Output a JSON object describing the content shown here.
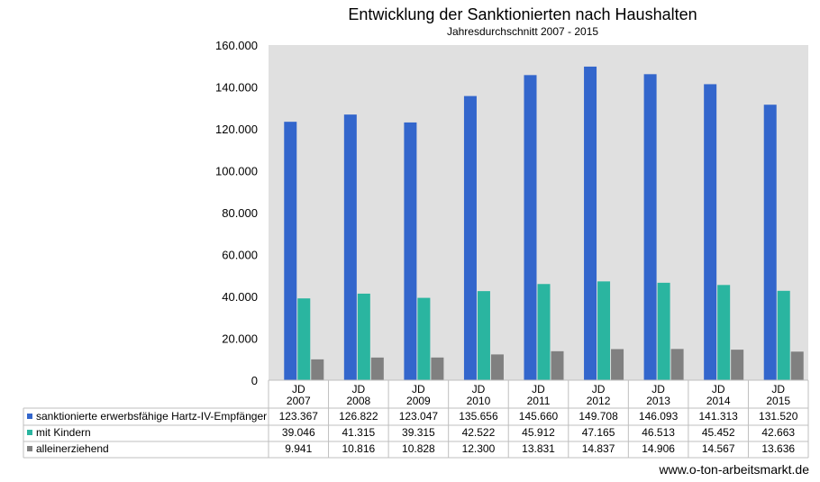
{
  "chart_data": {
    "type": "bar",
    "title": "Entwicklung der Sanktionierten nach Haushalten",
    "subtitle": "Jahresdurchschnitt  2007 - 2015",
    "categories": [
      [
        "JD",
        "2007"
      ],
      [
        "JD",
        "2008"
      ],
      [
        "JD",
        "2009"
      ],
      [
        "JD",
        "2010"
      ],
      [
        "JD",
        "2011"
      ],
      [
        "JD",
        "2012"
      ],
      [
        "JD",
        "2013"
      ],
      [
        "JD",
        "2014"
      ],
      [
        "JD",
        "2015"
      ]
    ],
    "series": [
      {
        "name": "sanktionierte erwerbsfähige Hartz-IV-Empfänger",
        "color": "#3366cc",
        "values": [
          123367,
          126822,
          123047,
          135656,
          145660,
          149708,
          146093,
          141313,
          131520
        ],
        "labels": [
          "123.367",
          "126.822",
          "123.047",
          "135.656",
          "145.660",
          "149.708",
          "146.093",
          "141.313",
          "131.520"
        ]
      },
      {
        "name": "mit Kindern",
        "color": "#2ab5a0",
        "values": [
          39046,
          41315,
          39315,
          42522,
          45912,
          47165,
          46513,
          45452,
          42663
        ],
        "labels": [
          "39.046",
          "41.315",
          "39.315",
          "42.522",
          "45.912",
          "47.165",
          "46.513",
          "45.452",
          "42.663"
        ]
      },
      {
        "name": "alleinerziehend",
        "color": "#808080",
        "values": [
          9941,
          10816,
          10828,
          12300,
          13831,
          14837,
          14906,
          14567,
          13636
        ],
        "labels": [
          "9.941",
          "10.816",
          "10.828",
          "12.300",
          "13.831",
          "14.837",
          "14.906",
          "14.567",
          "13.636"
        ]
      }
    ],
    "yticks": [
      0,
      20000,
      40000,
      60000,
      80000,
      100000,
      120000,
      140000,
      160000
    ],
    "ytick_labels": [
      "0",
      "20.000",
      "40.000",
      "60.000",
      "80.000",
      "100.000",
      "120.000",
      "140.000",
      "160.000"
    ],
    "ylim": [
      0,
      160000
    ],
    "grid": false,
    "plot_background": "#e0e0e0",
    "legend_placement": "data-table"
  },
  "footer": "www.o-ton-arbeitsmarkt.de"
}
